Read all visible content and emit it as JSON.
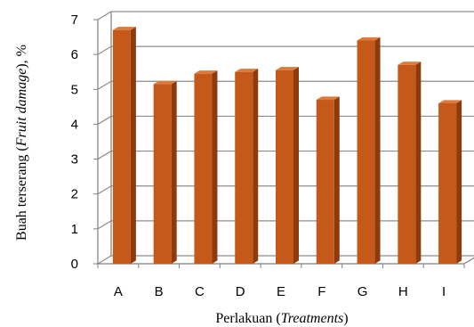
{
  "chart_data": {
    "type": "bar",
    "categories": [
      "A",
      "B",
      "C",
      "D",
      "E",
      "F",
      "G",
      "H",
      "I"
    ],
    "values": [
      6.7,
      5.15,
      5.45,
      5.5,
      5.55,
      4.7,
      6.4,
      5.7,
      4.6
    ],
    "xlabel": "Perlakuan (Treatments)",
    "xlabel_parts": {
      "plain": "Perlakuan (",
      "italic": "Treatments",
      "close": ")"
    },
    "ylabel": "Buah terserang (Fruit damage), %",
    "ylabel_parts": {
      "plain": "Buah terserang (",
      "italic": "Fruit damage",
      "close": "), %"
    },
    "ylim": [
      0,
      7
    ],
    "yticks": [
      0,
      1,
      2,
      3,
      4,
      5,
      6,
      7
    ],
    "grid": true,
    "legend": "none",
    "colors": {
      "bar_front": "#c5591a",
      "bar_side": "#8f3a0c",
      "bar_top": "#dc7a3c",
      "grid": "#8c8c8c",
      "axis": "#7f7f7f"
    }
  }
}
